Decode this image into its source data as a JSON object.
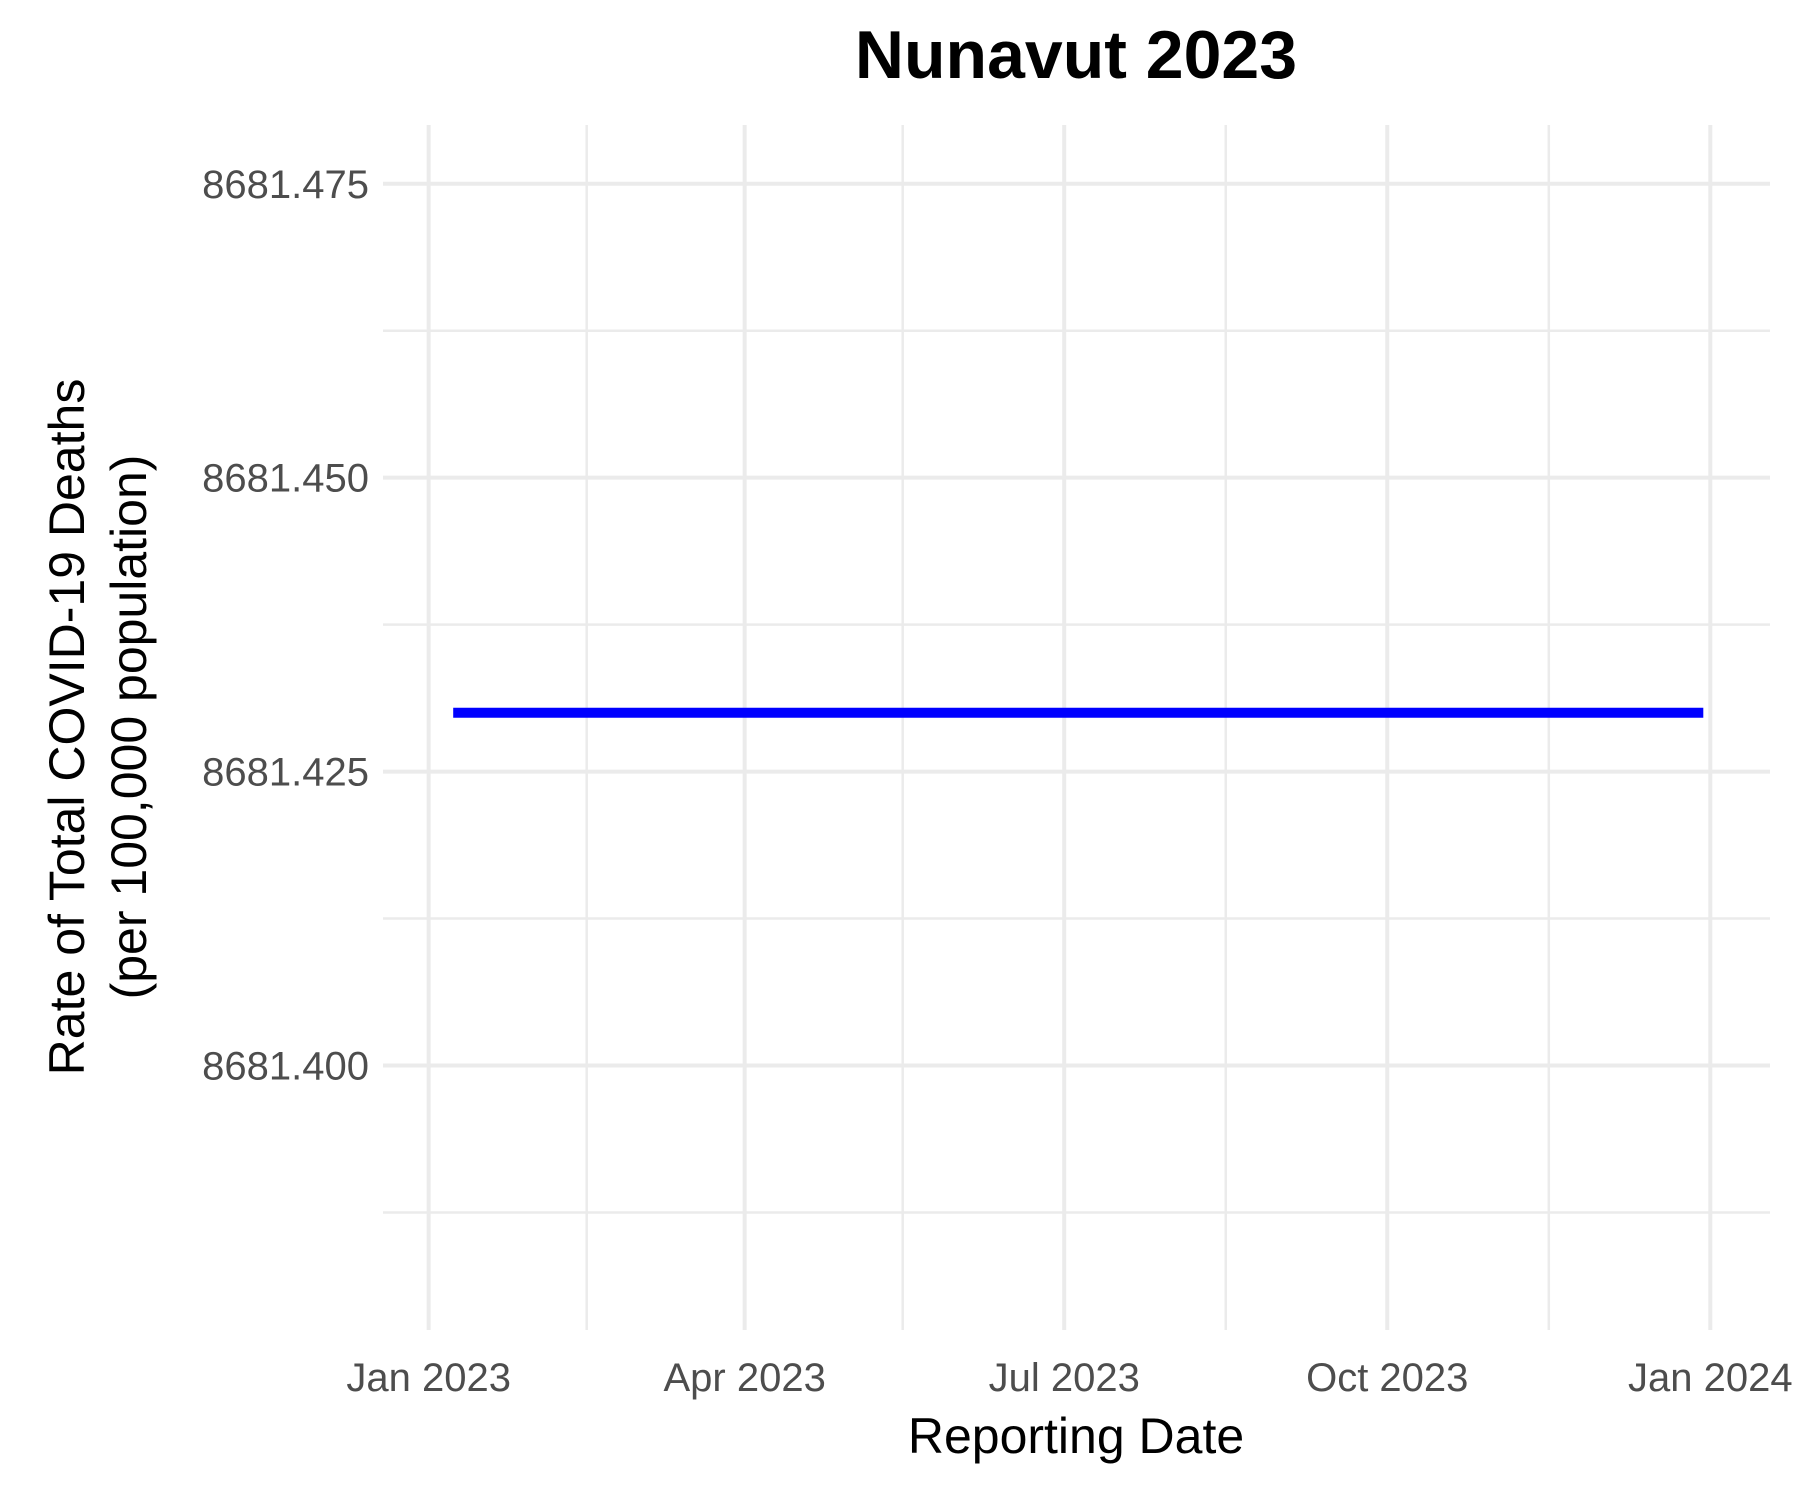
{
  "chart_data": {
    "type": "line",
    "title": "Nunavut 2023",
    "xlabel": "Reporting Date",
    "ylabel_lines": [
      "Rate of Total COVID-19 Deaths",
      "(per 100,000 population)"
    ],
    "x_ticks": [
      {
        "date": "2023-01-01",
        "label": "Jan 2023"
      },
      {
        "date": "2023-04-01",
        "label": "Apr 2023"
      },
      {
        "date": "2023-07-01",
        "label": "Jul 2023"
      },
      {
        "date": "2023-10-01",
        "label": "Oct 2023"
      },
      {
        "date": "2024-01-01",
        "label": "Jan 2024"
      }
    ],
    "x_minor_ticks": [
      "2023-02-15",
      "2023-05-16",
      "2023-08-16",
      "2023-11-16"
    ],
    "xlim": [
      "2022-12-19",
      "2024-01-18"
    ],
    "y_ticks": [
      {
        "value": 8681.4,
        "label": "8681.400"
      },
      {
        "value": 8681.425,
        "label": "8681.425"
      },
      {
        "value": 8681.45,
        "label": "8681.450"
      },
      {
        "value": 8681.475,
        "label": "8681.475"
      }
    ],
    "y_minor_ticks": [
      8681.3875,
      8681.4125,
      8681.4375,
      8681.4625
    ],
    "ylim": [
      8681.3775,
      8681.48
    ],
    "grid": true,
    "legend": "none",
    "series": [
      {
        "color": "#0000ff",
        "x": [
          "2023-01-08",
          "2023-12-30"
        ],
        "y": [
          8681.43,
          8681.43
        ]
      }
    ]
  }
}
